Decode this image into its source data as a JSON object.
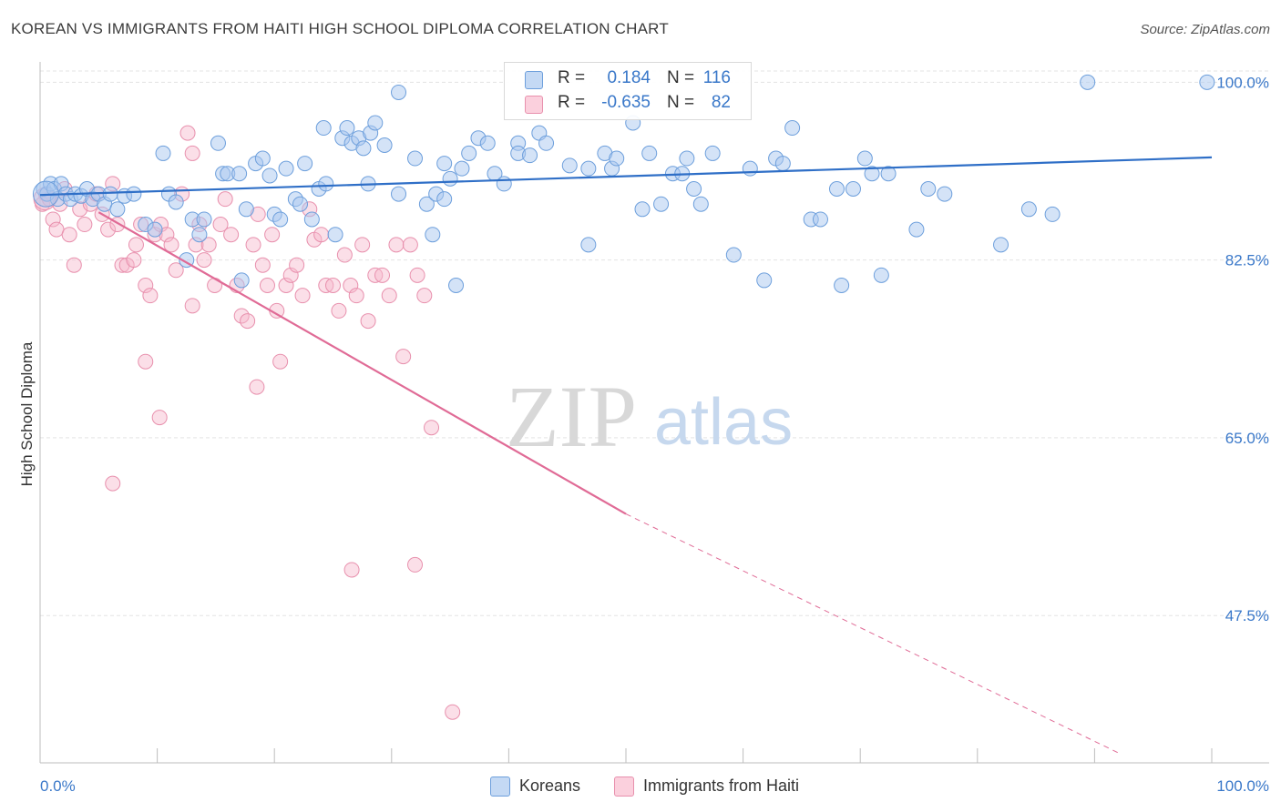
{
  "header": {
    "title": "KOREAN VS IMMIGRANTS FROM HAITI HIGH SCHOOL DIPLOMA CORRELATION CHART",
    "source": "Source: ZipAtlas.com"
  },
  "legend_top": {
    "rows": [
      {
        "r_label": "R =",
        "r_value": "0.184",
        "n_label": "N =",
        "n_value": "116",
        "color": "#a9c8ef"
      },
      {
        "r_label": "R =",
        "r_value": "-0.635",
        "n_label": "N =",
        "n_value": "82",
        "color": "#f7b8cc"
      }
    ]
  },
  "legend_bottom": {
    "koreans": "Koreans",
    "haiti": "Immigrants from Haiti"
  },
  "watermark": {
    "zip": "ZIP",
    "atlas": "atlas"
  },
  "colors": {
    "blue_fill": "#a9c8ef",
    "blue_stroke": "#6d9fdc",
    "blue_line": "#2f6fc7",
    "pink_fill": "#f7b8cc",
    "pink_stroke": "#e890ad",
    "pink_line": "#e06b96",
    "tick_label": "#3a78c9",
    "grid": "#e3e3e3"
  },
  "chart_data": {
    "type": "scatter",
    "title": "KOREAN VS IMMIGRANTS FROM HAITI HIGH SCHOOL DIPLOMA CORRELATION CHART",
    "ylabel": "High School Diploma",
    "xlim": [
      0,
      100
    ],
    "ylim": [
      33,
      102
    ],
    "x_tick_labels": [
      "0.0%",
      "100.0%"
    ],
    "y_ticks": [
      47.5,
      65.0,
      82.5,
      100.0
    ],
    "y_tick_labels": [
      "47.5%",
      "65.0%",
      "82.5%",
      "100.0%"
    ],
    "grid": true,
    "series": [
      {
        "name": "Koreans",
        "r": 0.184,
        "n": 116,
        "trend": {
          "x": [
            0,
            100
          ],
          "y": [
            88.9,
            92.6
          ]
        },
        "points": [
          [
            0.3,
            89.5
          ],
          [
            0.6,
            89
          ],
          [
            0.9,
            90
          ],
          [
            1.2,
            89.5
          ],
          [
            1.5,
            88.5
          ],
          [
            1.8,
            90
          ],
          [
            2.2,
            89
          ],
          [
            2.6,
            88.5
          ],
          [
            3.0,
            89
          ],
          [
            3.5,
            88.8
          ],
          [
            4.0,
            89.5
          ],
          [
            4.5,
            88.5
          ],
          [
            5.0,
            89
          ],
          [
            5.5,
            88
          ],
          [
            6.0,
            89
          ],
          [
            6.6,
            87.5
          ],
          [
            7.2,
            88.8
          ],
          [
            8.0,
            89
          ],
          [
            9.0,
            86
          ],
          [
            9.8,
            85.5
          ],
          [
            10.5,
            93
          ],
          [
            11.0,
            89
          ],
          [
            11.6,
            88.2
          ],
          [
            12.5,
            82.5
          ],
          [
            13.0,
            86.5
          ],
          [
            13.6,
            85
          ],
          [
            14.0,
            86.5
          ],
          [
            15.2,
            94
          ],
          [
            15.6,
            91
          ],
          [
            16.0,
            91
          ],
          [
            17.0,
            91
          ],
          [
            17.6,
            87.5
          ],
          [
            17.2,
            80.5
          ],
          [
            18.4,
            92
          ],
          [
            19.0,
            92.5
          ],
          [
            19.6,
            90.8
          ],
          [
            20.0,
            87
          ],
          [
            20.5,
            86.5
          ],
          [
            21.0,
            91.5
          ],
          [
            21.8,
            88.5
          ],
          [
            22.2,
            88
          ],
          [
            22.6,
            92
          ],
          [
            23.2,
            86.5
          ],
          [
            23.8,
            89.5
          ],
          [
            24.4,
            90
          ],
          [
            24.2,
            95.5
          ],
          [
            25.2,
            85
          ],
          [
            25.8,
            94.5
          ],
          [
            26.2,
            95.5
          ],
          [
            26.6,
            94
          ],
          [
            27.2,
            94.5
          ],
          [
            27.6,
            93.5
          ],
          [
            28.2,
            95
          ],
          [
            28.6,
            96
          ],
          [
            29.4,
            93.8
          ],
          [
            28.0,
            90
          ],
          [
            30.6,
            99
          ],
          [
            30.6,
            89
          ],
          [
            32.0,
            92.5
          ],
          [
            33.0,
            88
          ],
          [
            33.5,
            85
          ],
          [
            33.8,
            89
          ],
          [
            34.5,
            88.5
          ],
          [
            34.5,
            92
          ],
          [
            35.0,
            90.5
          ],
          [
            35.5,
            80
          ],
          [
            36.0,
            91.5
          ],
          [
            36.6,
            93
          ],
          [
            37.4,
            94.5
          ],
          [
            38.2,
            94
          ],
          [
            38.8,
            91
          ],
          [
            39.6,
            90
          ],
          [
            40.8,
            94
          ],
          [
            40.8,
            93
          ],
          [
            41.8,
            92.8
          ],
          [
            42.6,
            95
          ],
          [
            43.2,
            94
          ],
          [
            45.2,
            91.8
          ],
          [
            46.8,
            91.5
          ],
          [
            46.8,
            84
          ],
          [
            48.2,
            93
          ],
          [
            48.8,
            91.5
          ],
          [
            49.2,
            92.5
          ],
          [
            50.6,
            96
          ],
          [
            51.4,
            87.5
          ],
          [
            52.0,
            93
          ],
          [
            53.0,
            88
          ],
          [
            54.0,
            91
          ],
          [
            54.8,
            91
          ],
          [
            55.2,
            92.5
          ],
          [
            55.8,
            89.5
          ],
          [
            56.4,
            88
          ],
          [
            57.4,
            93
          ],
          [
            59.2,
            83
          ],
          [
            60.6,
            91.5
          ],
          [
            61.8,
            80.5
          ],
          [
            62.8,
            92.5
          ],
          [
            63.4,
            92
          ],
          [
            64.2,
            95.5
          ],
          [
            65.8,
            86.5
          ],
          [
            66.6,
            86.5
          ],
          [
            68.0,
            89.5
          ],
          [
            68.4,
            80
          ],
          [
            69.4,
            89.5
          ],
          [
            70.4,
            92.5
          ],
          [
            71.0,
            91
          ],
          [
            71.8,
            81
          ],
          [
            72.4,
            91
          ],
          [
            74.8,
            85.5
          ],
          [
            75.8,
            89.5
          ],
          [
            77.2,
            89
          ],
          [
            82.0,
            84
          ],
          [
            84.4,
            87.5
          ],
          [
            86.4,
            87
          ],
          [
            89.4,
            100
          ],
          [
            99.6,
            100
          ]
        ]
      },
      {
        "name": "Immigrants from Haiti",
        "r": -0.635,
        "n": 82,
        "trend": {
          "x": [
            5,
            50
          ],
          "y": [
            87.2,
            57.5
          ]
        },
        "trend_dashed": {
          "x": [
            50,
            92
          ],
          "y": [
            57.5,
            34
          ]
        },
        "points": [
          [
            0.2,
            88
          ],
          [
            0.5,
            89
          ],
          [
            0.8,
            88.5
          ],
          [
            1.1,
            86.5
          ],
          [
            1.4,
            85.5
          ],
          [
            1.7,
            88
          ],
          [
            2.1,
            89.5
          ],
          [
            2.5,
            85
          ],
          [
            2.9,
            82
          ],
          [
            3.4,
            87.5
          ],
          [
            3.8,
            86
          ],
          [
            4.3,
            88
          ],
          [
            4.8,
            89
          ],
          [
            5.3,
            87
          ],
          [
            5.8,
            85.5
          ],
          [
            6.2,
            90
          ],
          [
            6.6,
            86
          ],
          [
            7.0,
            82
          ],
          [
            7.4,
            82
          ],
          [
            8.0,
            82.5
          ],
          [
            8.2,
            84
          ],
          [
            8.6,
            86
          ],
          [
            9.0,
            80
          ],
          [
            9.4,
            79
          ],
          [
            9.8,
            85
          ],
          [
            10.3,
            86
          ],
          [
            10.8,
            85
          ],
          [
            11.2,
            84
          ],
          [
            11.6,
            81.5
          ],
          [
            12.1,
            89
          ],
          [
            12.6,
            95
          ],
          [
            13.0,
            78
          ],
          [
            13.3,
            84
          ],
          [
            13.6,
            86
          ],
          [
            14.0,
            82.5
          ],
          [
            14.4,
            84
          ],
          [
            14.9,
            80
          ],
          [
            15.4,
            86
          ],
          [
            15.8,
            88.5
          ],
          [
            16.3,
            85
          ],
          [
            16.8,
            80
          ],
          [
            17.2,
            77
          ],
          [
            17.7,
            76.5
          ],
          [
            18.2,
            84
          ],
          [
            18.6,
            87
          ],
          [
            19.0,
            82
          ],
          [
            19.4,
            80
          ],
          [
            19.8,
            85
          ],
          [
            20.2,
            77.5
          ],
          [
            20.5,
            72.5
          ],
          [
            21.0,
            80
          ],
          [
            21.4,
            81
          ],
          [
            21.9,
            82
          ],
          [
            22.4,
            79
          ],
          [
            23.0,
            87.5
          ],
          [
            23.4,
            84.5
          ],
          [
            24.0,
            85
          ],
          [
            24.4,
            80
          ],
          [
            25.0,
            80
          ],
          [
            25.5,
            77.5
          ],
          [
            26.0,
            83
          ],
          [
            26.5,
            80
          ],
          [
            27.0,
            79
          ],
          [
            27.5,
            84
          ],
          [
            28.0,
            76.5
          ],
          [
            28.6,
            81
          ],
          [
            29.2,
            81
          ],
          [
            29.8,
            79
          ],
          [
            30.4,
            84
          ],
          [
            31.0,
            73
          ],
          [
            31.6,
            84
          ],
          [
            32.2,
            81
          ],
          [
            32.8,
            79
          ],
          [
            33.4,
            66
          ],
          [
            26.6,
            52
          ],
          [
            32.0,
            52.5
          ],
          [
            35.2,
            38
          ],
          [
            6.2,
            60.5
          ],
          [
            10.2,
            67
          ],
          [
            13.0,
            93
          ],
          [
            9.0,
            72.5
          ],
          [
            18.5,
            70
          ]
        ]
      }
    ]
  }
}
